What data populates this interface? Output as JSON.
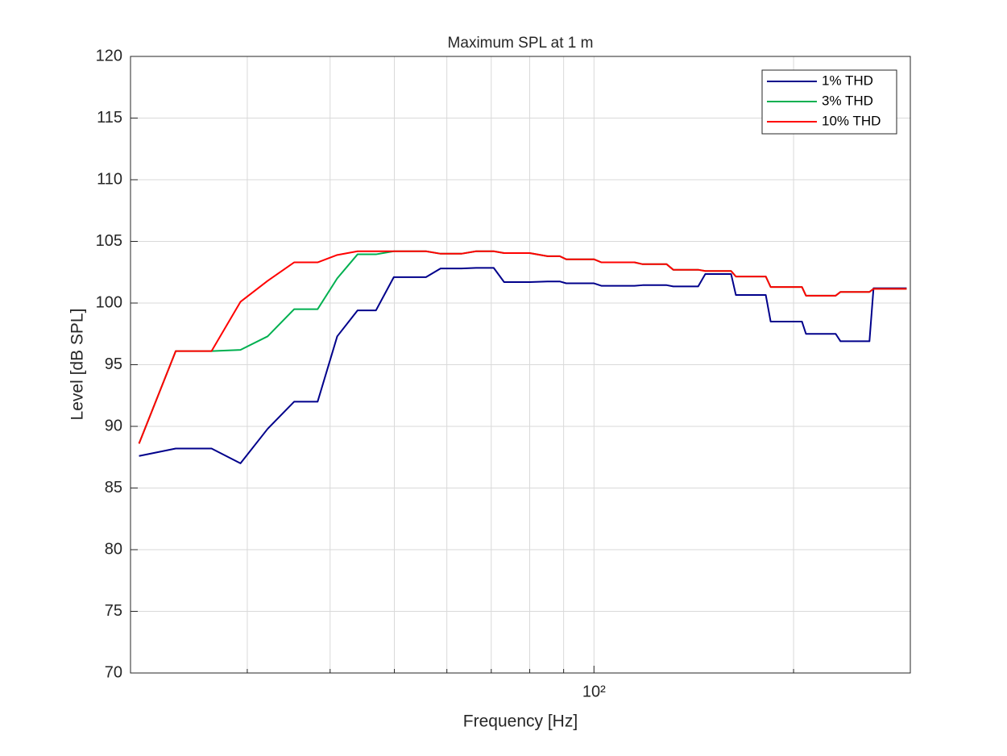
{
  "chart_data": {
    "type": "line",
    "title": "Maximum SPL at 1 m",
    "xlabel": "Frequency [Hz]",
    "ylabel": "Level [dB SPL]",
    "x": [
      20.6,
      23.4,
      26.5,
      29.3,
      32.2,
      35.3,
      38.3,
      41.0,
      44.0,
      46.9,
      49.9,
      55.8,
      58.7,
      63.1,
      66.4,
      70.6,
      73.2,
      80.0,
      85.1,
      88.8,
      90.8,
      100,
      102.6,
      115.1,
      118.4,
      128.7,
      131.7,
      143.6,
      147.2,
      161,
      163.7,
      181.6,
      184.7,
      205.9,
      208.8,
      231.5,
      235.4,
      260.3,
      264,
      296.2
    ],
    "series": [
      {
        "name": "1% THD",
        "color": "#00008b",
        "values": [
          87.6,
          88.2,
          88.2,
          87.0,
          89.8,
          92.0,
          92.0,
          97.3,
          99.4,
          99.4,
          102.1,
          102.1,
          102.8,
          102.8,
          102.85,
          102.85,
          101.7,
          101.7,
          101.75,
          101.75,
          101.6,
          101.6,
          101.4,
          101.4,
          101.45,
          101.45,
          101.35,
          101.35,
          102.35,
          102.35,
          100.65,
          100.65,
          98.5,
          98.5,
          97.5,
          97.5,
          96.9,
          96.9,
          101.2,
          101.2
        ]
      },
      {
        "name": "3% THD",
        "color": "#00b050",
        "values": [
          88.6,
          96.1,
          96.1,
          96.2,
          97.3,
          99.5,
          99.5,
          102.0,
          103.95,
          103.95,
          104.2,
          104.2,
          104.0,
          104.0,
          104.2,
          104.2,
          104.05,
          104.05,
          103.8,
          103.8,
          103.55,
          103.55,
          103.3,
          103.3,
          103.15,
          103.15,
          102.7,
          102.7,
          102.6,
          102.6,
          102.15,
          102.15,
          101.3,
          101.3,
          100.6,
          100.6,
          100.9,
          100.9,
          101.15,
          101.15
        ]
      },
      {
        "name": "10% THD",
        "color": "#ff0000",
        "values": [
          88.6,
          96.1,
          96.1,
          100.1,
          101.8,
          103.3,
          103.3,
          103.9,
          104.2,
          104.2,
          104.2,
          104.2,
          104.0,
          104.0,
          104.2,
          104.2,
          104.05,
          104.05,
          103.8,
          103.8,
          103.55,
          103.55,
          103.3,
          103.3,
          103.15,
          103.15,
          102.7,
          102.7,
          102.6,
          102.6,
          102.15,
          102.15,
          101.3,
          101.3,
          100.6,
          100.6,
          100.9,
          100.9,
          101.15,
          101.15
        ]
      }
    ],
    "xlim": [
      20,
      300
    ],
    "xscale": "log",
    "xticks": [
      {
        "value": 100,
        "label": "10²"
      }
    ],
    "xminorticks": [
      30,
      40,
      50,
      60,
      70,
      80,
      90,
      200
    ],
    "ylim": [
      70,
      120
    ],
    "yticks": [
      70,
      75,
      80,
      85,
      90,
      95,
      100,
      105,
      110,
      115,
      120
    ],
    "grid": true,
    "legend": "upper right"
  }
}
